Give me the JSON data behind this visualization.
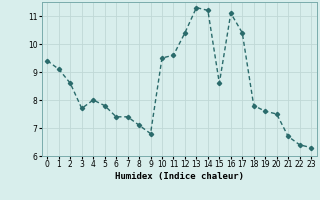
{
  "x": [
    0,
    1,
    2,
    3,
    4,
    5,
    6,
    7,
    8,
    9,
    10,
    11,
    12,
    13,
    14,
    15,
    16,
    17,
    18,
    19,
    20,
    21,
    22,
    23
  ],
  "y": [
    9.4,
    9.1,
    8.6,
    7.7,
    8.0,
    7.8,
    7.4,
    7.4,
    7.1,
    6.8,
    9.5,
    9.6,
    10.4,
    11.3,
    11.2,
    8.6,
    11.1,
    10.4,
    7.8,
    7.6,
    7.5,
    6.7,
    6.4,
    6.3
  ],
  "line_color": "#2a6b6b",
  "marker": "D",
  "marker_size": 2.2,
  "line_width": 1.0,
  "xlabel": "Humidex (Indice chaleur)",
  "xlim": [
    -0.5,
    23.5
  ],
  "ylim": [
    6,
    11.5
  ],
  "yticks": [
    6,
    7,
    8,
    9,
    10,
    11
  ],
  "xticks": [
    0,
    1,
    2,
    3,
    4,
    5,
    6,
    7,
    8,
    9,
    10,
    11,
    12,
    13,
    14,
    15,
    16,
    17,
    18,
    19,
    20,
    21,
    22,
    23
  ],
  "bg_color": "#d8eeec",
  "grid_color": "#c0d8d6",
  "label_fontsize": 6.5,
  "tick_fontsize": 5.5
}
